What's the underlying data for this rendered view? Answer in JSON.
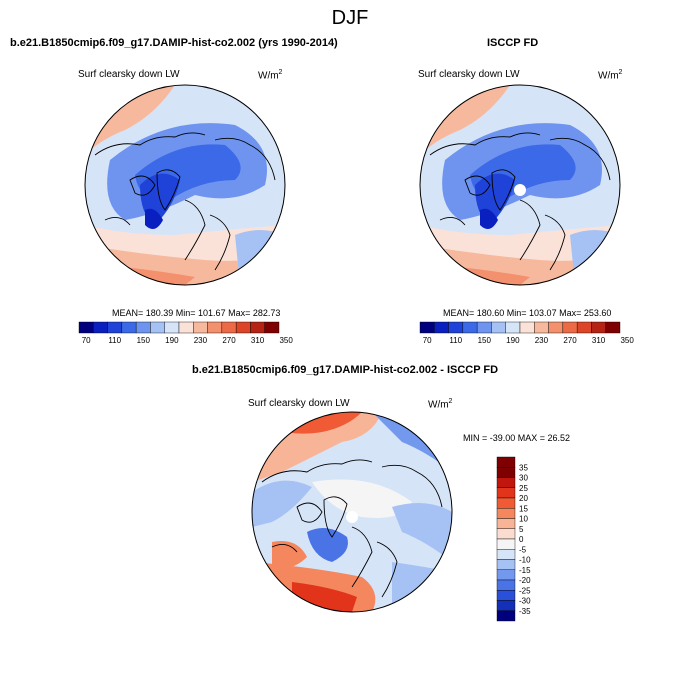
{
  "chart_data": [
    {
      "type": "heatmap",
      "subtype": "polar-stereographic-map",
      "case": "b.e21.B1850cmip6.f09_g17.DAMIP-hist-co2.002 (yrs 1990-2014)",
      "variable": "Surf clearsky down LW",
      "units_text": "W/m",
      "units_sup": "2",
      "mean_line": "MEAN= 180.39  Min= 101.67  Max= 282.73",
      "mean": 180.39,
      "min": 101.67,
      "max": 282.73,
      "colorbar_ticks": [
        "70",
        "110",
        "150",
        "190",
        "230",
        "270",
        "310",
        "350"
      ]
    },
    {
      "type": "heatmap",
      "subtype": "polar-stereographic-map",
      "case": "ISCCP FD",
      "variable": "Surf clearsky down LW",
      "units_text": "W/m",
      "units_sup": "2",
      "mean_line": "MEAN= 180.60  Min= 103.07  Max= 253.60",
      "mean": 180.6,
      "min": 103.07,
      "max": 253.6,
      "colorbar_ticks": [
        "70",
        "110",
        "150",
        "190",
        "230",
        "270",
        "310",
        "350"
      ]
    },
    {
      "type": "heatmap",
      "subtype": "polar-stereographic-map-difference",
      "case": "b.e21.B1850cmip6.f09_g17.DAMIP-hist-co2.002 - ISCCP FD",
      "variable": "Surf clearsky down LW",
      "units_text": "W/m",
      "units_sup": "2",
      "minmax_line": "MIN = -39.00 MAX =  26.52",
      "min": -39.0,
      "max": 26.52,
      "colorbar_ticks": [
        "35",
        "30",
        "25",
        "20",
        "15",
        "10",
        "5",
        "0",
        "-5",
        "-10",
        "-15",
        "-20",
        "-25",
        "-30",
        "-35"
      ]
    }
  ],
  "page": {
    "title": "DJF"
  },
  "colors": {
    "seq": [
      "#00007f",
      "#0a1fbf",
      "#1f43d8",
      "#3b69e8",
      "#6e94ef",
      "#a6c2f4",
      "#d6e4f8",
      "#fbe2d8",
      "#f7b99e",
      "#f3906d",
      "#ec6a45",
      "#dc4527",
      "#b52314",
      "#7f0000"
    ],
    "diff": [
      "#7f0000",
      "#c1160e",
      "#e2341b",
      "#f05a34",
      "#f4875e",
      "#f7b497",
      "#fadcd0",
      "#f5f5f5",
      "#d6e4f8",
      "#a6c2f4",
      "#7399ee",
      "#4a74e6",
      "#2a4fd8",
      "#142fb8",
      "#00007f"
    ],
    "coast": "#000000"
  }
}
